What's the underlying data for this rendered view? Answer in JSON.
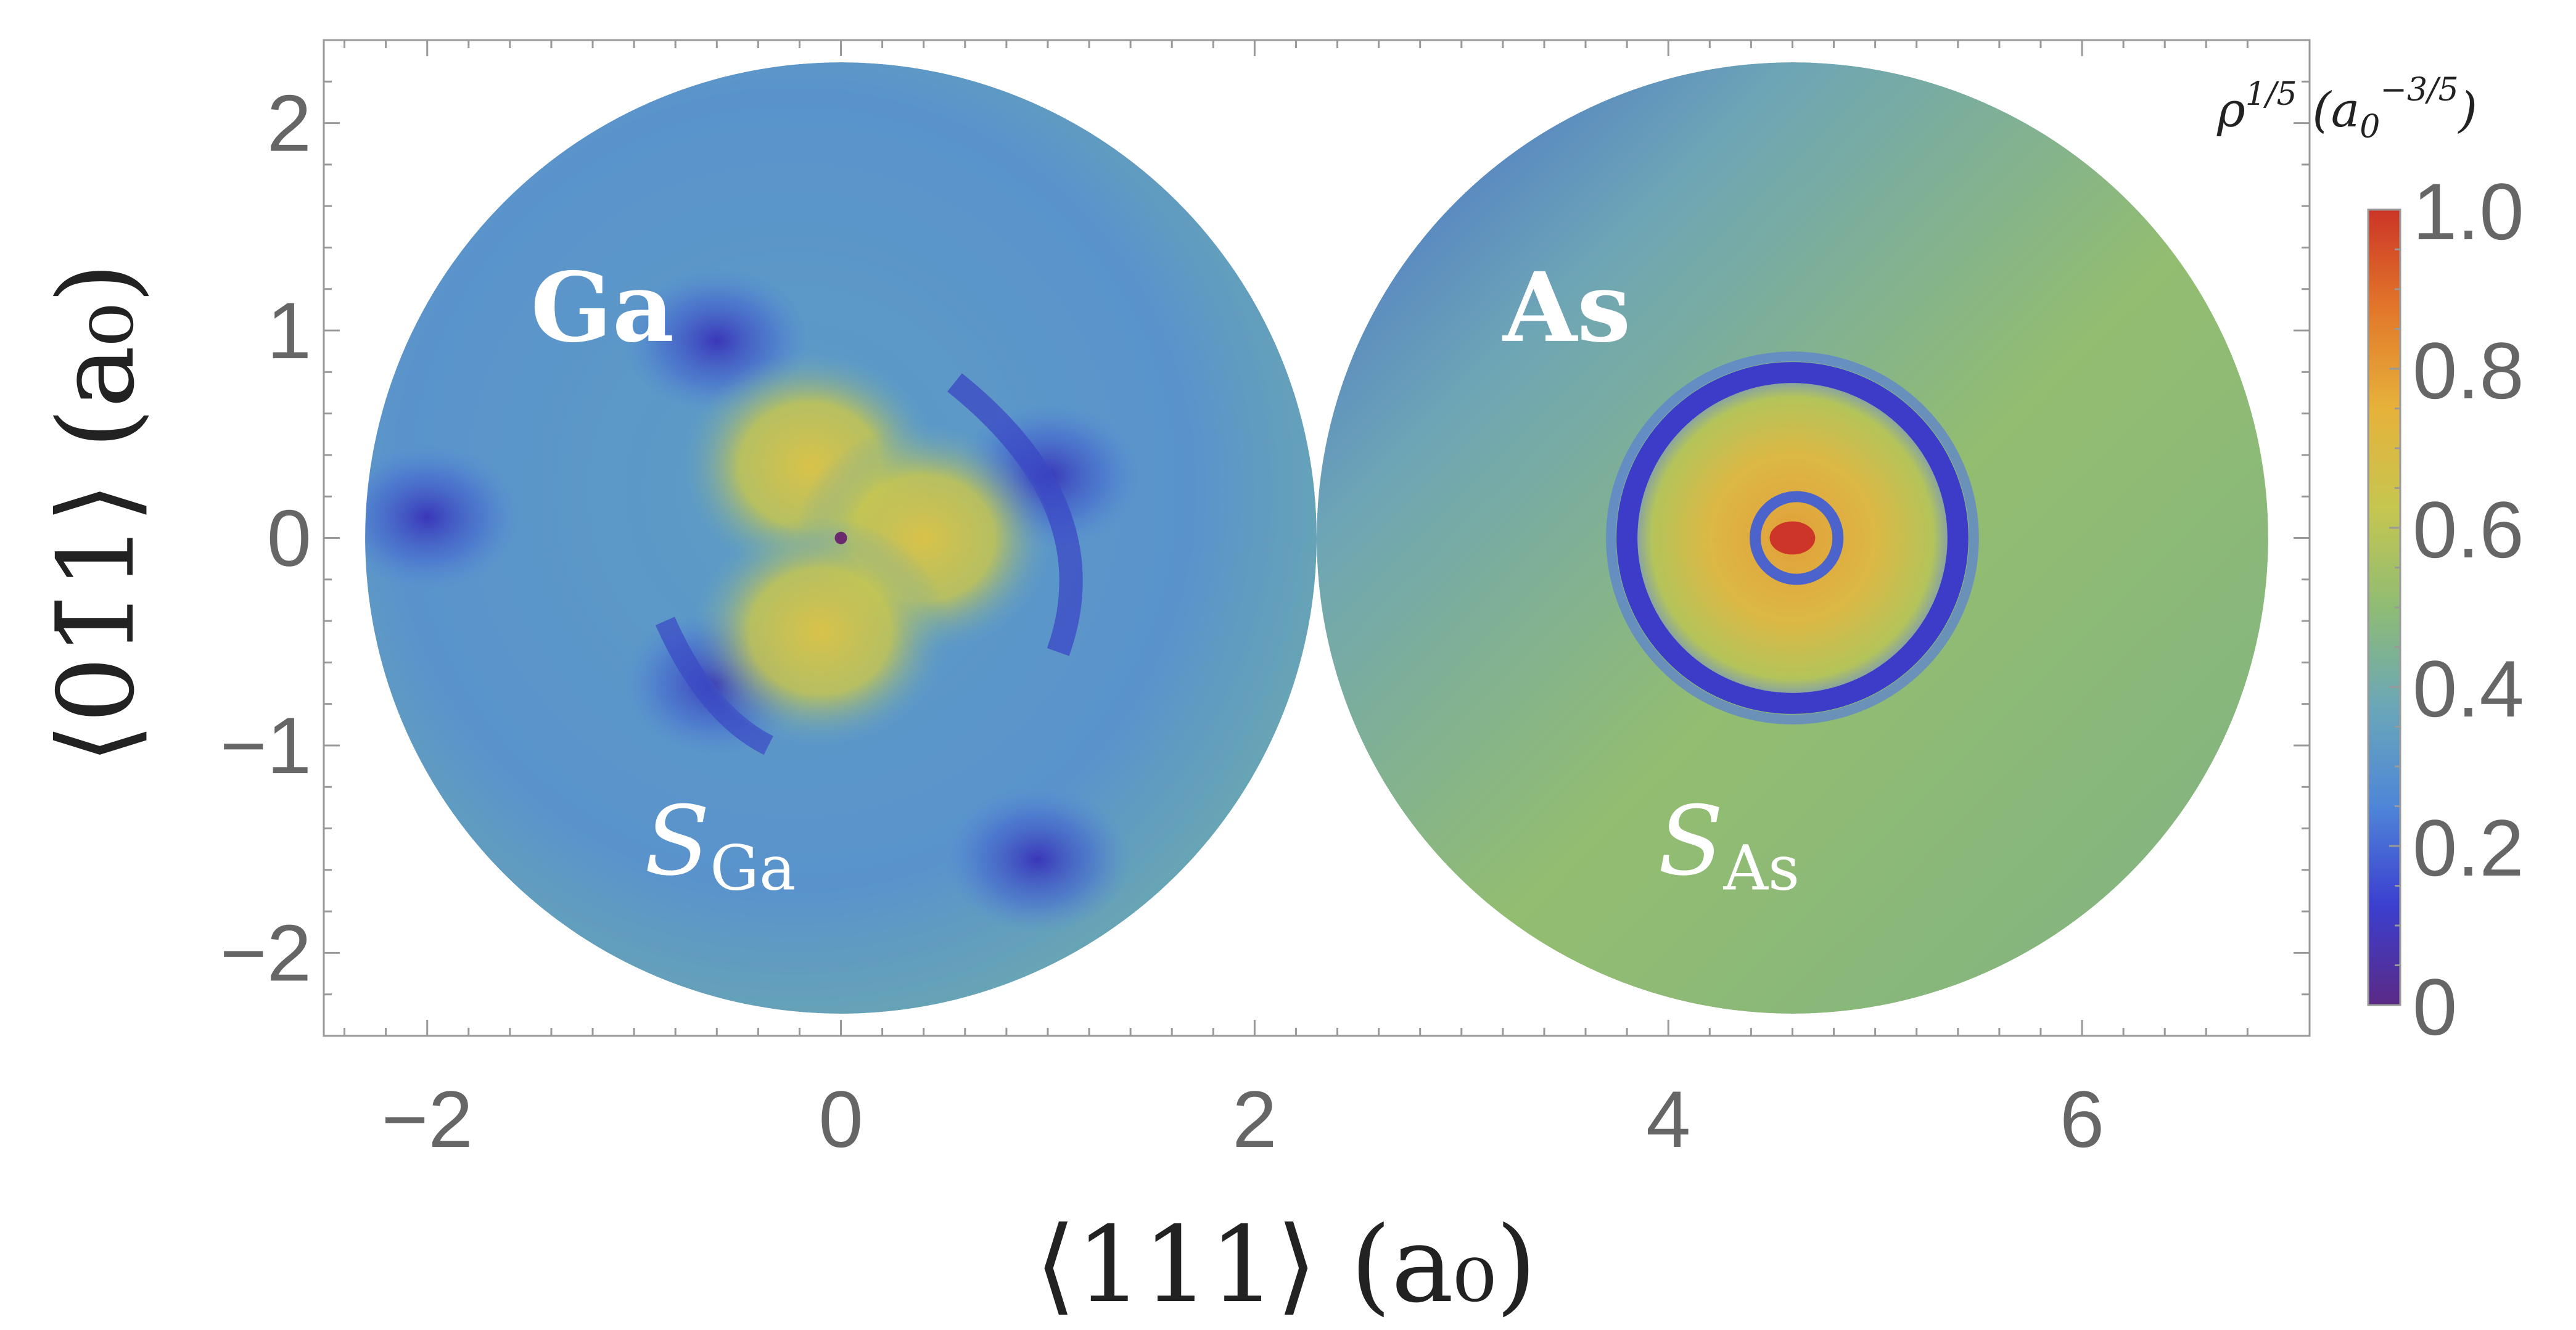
{
  "chart_data": {
    "type": "heatmap",
    "xlabel": "⟨111⟩ (a₀)",
    "ylabel": "⟨01̄1⟩ (a₀)",
    "xlim": [
      -2.5,
      7.1
    ],
    "ylim": [
      -2.4,
      2.4
    ],
    "xticks": [
      -2,
      0,
      2,
      4,
      6
    ],
    "yticks": [
      -2,
      -1,
      0,
      1,
      2
    ],
    "xtick_labels": [
      "−2",
      "0",
      "2",
      "4",
      "6"
    ],
    "ytick_labels": [
      "−2",
      "−1",
      "0",
      "1",
      "2"
    ],
    "grid": false,
    "colorbar": {
      "title": "ρ^1/5 (a₀^−3/5)",
      "title_base": "ρ",
      "title_exp": "1/5",
      "title_unit": "(a",
      "title_unit_sub": "0",
      "title_unit_exp": "−3/5",
      "title_close": ")",
      "min": 0,
      "max": 1.0,
      "ticks": [
        0,
        0.2,
        0.4,
        0.6,
        0.8,
        1.0
      ],
      "tick_labels": [
        "0",
        "0.2",
        "0.4",
        "0.6",
        "0.8",
        "1.0"
      ],
      "colors": [
        "#5b2a86",
        "#3b3fcf",
        "#4f86d8",
        "#6aa7b8",
        "#8fbc74",
        "#c6c650",
        "#e6b23a",
        "#e2772a",
        "#cc3527"
      ]
    },
    "regions": [
      {
        "atom": "Ga",
        "surface_main": "S",
        "surface_sub": "Ga",
        "center": [
          0,
          0
        ],
        "radius": 2.3,
        "background_level": 0.33,
        "lobes": [
          {
            "x": -0.15,
            "y": 0.35,
            "level": 0.62
          },
          {
            "x": 0.4,
            "y": 0.0,
            "level": 0.64
          },
          {
            "x": -0.1,
            "y": -0.45,
            "level": 0.6
          }
        ],
        "minima": [
          {
            "x": -0.6,
            "y": 0.95,
            "level": 0.1
          },
          {
            "x": -2.0,
            "y": 0.1,
            "level": 0.12
          },
          {
            "x": 0.95,
            "y": -1.55,
            "level": 0.1
          },
          {
            "x": -0.6,
            "y": -0.7,
            "level": 0.15
          },
          {
            "x": 1.0,
            "y": 0.3,
            "level": 0.15
          }
        ]
      },
      {
        "atom": "As",
        "surface_main": "S",
        "surface_sub": "As",
        "center": [
          4.6,
          0
        ],
        "radius": 2.3,
        "background_level": 0.5,
        "shell_radius": 0.8,
        "shell_level": 0.1,
        "core_level": 1.0
      }
    ]
  }
}
